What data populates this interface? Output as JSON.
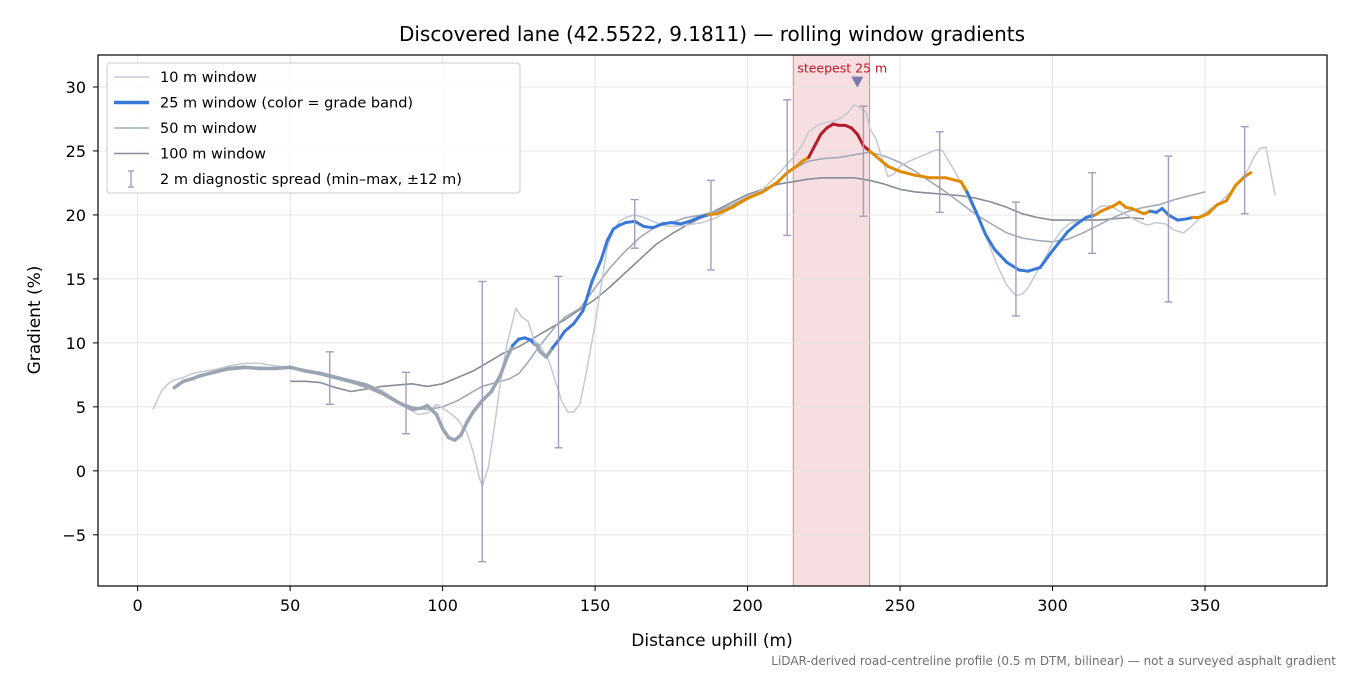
{
  "chart_data": {
    "type": "line",
    "title": "Discovered lane (42.5522, 9.1811) — rolling window gradients",
    "xlabel": "Distance uphill (m)",
    "ylabel": "Gradient (%)",
    "footnote": "LiDAR-derived road-centreline profile (0.5 m DTM, bilinear) — not a surveyed asphalt gradient",
    "xlim": [
      -13,
      390
    ],
    "ylim": [
      -9,
      32.5
    ],
    "xticks": [
      0,
      50,
      100,
      150,
      200,
      250,
      300,
      350
    ],
    "yticks": [
      -5,
      0,
      5,
      10,
      15,
      20,
      25,
      30
    ],
    "grid": true,
    "legend_position": "top-left",
    "annotation": {
      "text": "steepest 25 m",
      "x": 236,
      "y": 30.5,
      "color": "#c0182a"
    },
    "highlight_band": {
      "x0": 215,
      "x1": 240,
      "color": "#e8a0a8"
    },
    "grade_band_colors": {
      "low": "#9aa4b2",
      "mid": "#3a78d8",
      "high": "#e08a00",
      "steep": "#b81c2c"
    },
    "series": [
      {
        "name": "10 m window",
        "color": "#c4c9d2",
        "x": [
          5,
          8,
          10,
          12,
          15,
          18,
          20,
          25,
          30,
          35,
          40,
          45,
          50,
          55,
          60,
          65,
          70,
          75,
          80,
          85,
          88,
          92,
          95,
          98,
          100,
          103,
          105,
          108,
          110,
          112,
          113,
          115,
          117,
          119,
          121,
          124,
          126,
          128,
          130,
          132,
          135,
          137,
          139,
          141,
          143,
          145,
          147,
          150,
          152,
          154,
          156,
          158,
          160,
          163,
          166,
          169,
          172,
          175,
          180,
          185,
          190,
          195,
          200,
          205,
          210,
          215,
          218,
          220,
          223,
          225,
          228,
          230,
          233,
          235,
          237,
          239,
          240,
          242,
          244,
          246,
          248,
          250,
          253,
          256,
          259,
          262,
          264,
          266,
          268,
          270,
          273,
          276,
          279,
          282,
          285,
          288,
          290,
          292,
          295,
          298,
          300,
          303,
          306,
          310,
          313,
          316,
          319,
          322,
          325,
          328,
          331,
          334,
          337,
          340,
          343,
          346,
          349,
          352,
          355,
          358,
          361,
          364,
          366,
          368,
          370,
          373
        ],
        "y": [
          4.8,
          6.3,
          6.8,
          7.1,
          7.3,
          7.6,
          7.7,
          7.9,
          8.2,
          8.4,
          8.4,
          8.2,
          8.1,
          7.9,
          7.7,
          7.4,
          7.1,
          6.8,
          6.3,
          5.5,
          5.0,
          4.4,
          4.5,
          5.2,
          4.9,
          4.4,
          4.0,
          3.0,
          1.5,
          -0.5,
          -1.2,
          0.3,
          3.5,
          7.0,
          9.8,
          12.7,
          12.0,
          11.7,
          10.2,
          9.8,
          8.5,
          7.0,
          5.5,
          4.6,
          4.6,
          5.2,
          7.5,
          11.5,
          14.5,
          17.5,
          18.8,
          19.5,
          19.8,
          20.0,
          19.8,
          19.5,
          19.2,
          19.1,
          19.2,
          19.4,
          19.8,
          20.6,
          21.3,
          22.0,
          23.2,
          24.5,
          25.5,
          26.5,
          27.0,
          27.2,
          27.3,
          27.5,
          28.0,
          28.6,
          28.4,
          28.0,
          26.8,
          26.0,
          24.5,
          23.0,
          23.2,
          23.8,
          24.2,
          24.5,
          24.8,
          25.1,
          25.0,
          24.2,
          23.4,
          22.5,
          21.0,
          19.5,
          17.8,
          16.0,
          14.5,
          13.7,
          13.8,
          14.3,
          15.6,
          16.8,
          17.8,
          18.8,
          19.4,
          19.6,
          20.2,
          20.7,
          20.7,
          20.3,
          19.9,
          19.5,
          19.2,
          19.4,
          19.3,
          18.8,
          18.6,
          19.2,
          20.0,
          20.5,
          21.0,
          21.7,
          22.5,
          23.5,
          24.5,
          25.2,
          25.3,
          21.5
        ]
      },
      {
        "name": "25 m window (color = grade band)",
        "color": "#3a78d8",
        "x": [
          12,
          15,
          18,
          20,
          25,
          30,
          35,
          40,
          45,
          50,
          55,
          60,
          65,
          70,
          75,
          80,
          85,
          90,
          93,
          95,
          98,
          100,
          102,
          104,
          106,
          108,
          110,
          113,
          116,
          119,
          121,
          123,
          125,
          127,
          129,
          130,
          131,
          132,
          134,
          136,
          138,
          140,
          143,
          146,
          149,
          152,
          154,
          156,
          158,
          160,
          163,
          166,
          169,
          172,
          175,
          178,
          181,
          184,
          187,
          190,
          195,
          200,
          205,
          210,
          213,
          216,
          218,
          220,
          222,
          224,
          226,
          228,
          230,
          232,
          234,
          236,
          238,
          240,
          243,
          246,
          250,
          255,
          260,
          265,
          270,
          272,
          275,
          278,
          281,
          285,
          289,
          292,
          296,
          299,
          302,
          305,
          308,
          311,
          314,
          316,
          318,
          320,
          322,
          324,
          326,
          328,
          330,
          332,
          334,
          336,
          338,
          341,
          344,
          346,
          348,
          351,
          354,
          357,
          360,
          363,
          365,
          367
        ],
        "y": [
          6.5,
          7.0,
          7.2,
          7.4,
          7.7,
          8.0,
          8.1,
          8.0,
          8.0,
          8.1,
          7.8,
          7.6,
          7.3,
          7.0,
          6.7,
          6.1,
          5.4,
          4.8,
          4.9,
          5.1,
          4.4,
          3.3,
          2.6,
          2.4,
          2.8,
          3.8,
          4.6,
          5.5,
          6.2,
          7.5,
          8.8,
          9.8,
          10.3,
          10.4,
          10.2,
          9.9,
          9.8,
          9.3,
          8.9,
          9.6,
          10.2,
          10.9,
          11.5,
          12.5,
          14.8,
          16.5,
          18.0,
          18.9,
          19.2,
          19.4,
          19.5,
          19.1,
          19.0,
          19.3,
          19.4,
          19.3,
          19.5,
          19.8,
          20.0,
          20.1,
          20.6,
          21.3,
          21.8,
          22.6,
          23.3,
          23.8,
          24.2,
          24.5,
          25.4,
          26.3,
          26.8,
          27.1,
          27.0,
          27.0,
          26.8,
          26.3,
          25.4,
          25.0,
          24.4,
          23.8,
          23.4,
          23.1,
          22.9,
          22.9,
          22.6,
          21.8,
          20.2,
          18.5,
          17.3,
          16.3,
          15.7,
          15.6,
          15.9,
          16.9,
          17.8,
          18.7,
          19.3,
          19.8,
          20.0,
          20.3,
          20.5,
          20.7,
          21.0,
          20.6,
          20.5,
          20.3,
          20.1,
          20.3,
          20.2,
          20.5,
          20.0,
          19.6,
          19.7,
          19.8,
          19.8,
          20.1,
          20.8,
          21.1,
          22.3,
          23.0,
          23.3,
          22.8
        ],
        "bands": [
          "low",
          "low",
          "low",
          "low",
          "low",
          "low",
          "low",
          "low",
          "low",
          "low",
          "low",
          "low",
          "low",
          "low",
          "low",
          "low",
          "low",
          "low",
          "low",
          "low",
          "low",
          "low",
          "low",
          "low",
          "low",
          "low",
          "low",
          "low",
          "low",
          "low",
          "low",
          "mid",
          "mid",
          "mid",
          "mid",
          "low",
          "low",
          "low",
          "low",
          "mid",
          "mid",
          "mid",
          "mid",
          "mid",
          "mid",
          "mid",
          "mid",
          "mid",
          "mid",
          "mid",
          "mid",
          "mid",
          "mid",
          "mid",
          "mid",
          "mid",
          "mid",
          "mid",
          "high",
          "high",
          "high",
          "high",
          "high",
          "high",
          "high",
          "high",
          "high",
          "steep",
          "steep",
          "steep",
          "steep",
          "steep",
          "steep",
          "steep",
          "steep",
          "steep",
          "steep",
          "high",
          "high",
          "high",
          "high",
          "high",
          "high",
          "high",
          "high",
          "mid",
          "mid",
          "mid",
          "mid",
          "mid",
          "mid",
          "mid",
          "mid",
          "mid",
          "mid",
          "mid",
          "mid",
          "mid",
          "high",
          "high",
          "high",
          "high",
          "high",
          "high",
          "high",
          "high",
          "high",
          "mid",
          "mid",
          "mid",
          "mid",
          "mid",
          "mid",
          "high",
          "high",
          "high",
          "high",
          "high",
          "high",
          "high"
        ]
      },
      {
        "name": "50 m window",
        "color": "#a4aab6",
        "x": [
          25,
          30,
          35,
          40,
          45,
          50,
          55,
          60,
          65,
          70,
          75,
          80,
          85,
          90,
          95,
          100,
          105,
          110,
          113,
          116,
          119,
          122,
          125,
          128,
          131,
          134,
          137,
          140,
          145,
          150,
          155,
          160,
          165,
          170,
          175,
          180,
          185,
          190,
          195,
          200,
          205,
          210,
          215,
          220,
          225,
          230,
          235,
          240,
          245,
          250,
          255,
          260,
          265,
          270,
          275,
          280,
          285,
          290,
          295,
          300,
          305,
          310,
          315,
          320,
          325,
          330,
          335,
          340,
          345,
          350
        ],
        "y": [
          7.8,
          7.9,
          8.0,
          8.1,
          8.0,
          8.0,
          7.8,
          7.5,
          7.2,
          6.9,
          6.5,
          6.0,
          5.4,
          5.0,
          4.8,
          5.0,
          5.5,
          6.2,
          6.6,
          6.8,
          7.0,
          7.2,
          7.6,
          8.5,
          9.5,
          10.4,
          11.3,
          12.0,
          12.7,
          14.3,
          15.9,
          17.2,
          18.3,
          19.1,
          19.4,
          19.8,
          20.0,
          20.3,
          20.8,
          21.4,
          21.9,
          22.6,
          23.6,
          24.2,
          24.4,
          24.5,
          24.7,
          24.9,
          24.6,
          24.1,
          23.4,
          22.6,
          21.8,
          20.9,
          20.0,
          19.3,
          18.6,
          18.2,
          18.0,
          17.9,
          18.1,
          18.6,
          19.2,
          19.8,
          20.3,
          20.6,
          20.8,
          21.2,
          21.5,
          21.8
        ]
      },
      {
        "name": "100 m window",
        "color": "#868c98",
        "x": [
          50,
          55,
          60,
          65,
          70,
          75,
          80,
          85,
          90,
          95,
          100,
          105,
          110,
          115,
          120,
          125,
          130,
          135,
          140,
          145,
          150,
          155,
          160,
          165,
          170,
          175,
          180,
          185,
          190,
          195,
          200,
          205,
          210,
          215,
          220,
          225,
          230,
          235,
          240,
          245,
          250,
          255,
          260,
          265,
          270,
          275,
          280,
          285,
          290,
          295,
          300,
          305,
          310,
          315,
          320,
          325,
          330
        ],
        "y": [
          7.0,
          7.0,
          6.9,
          6.5,
          6.2,
          6.4,
          6.6,
          6.7,
          6.8,
          6.6,
          6.8,
          7.3,
          7.8,
          8.5,
          9.2,
          9.7,
          10.4,
          11.1,
          11.8,
          12.6,
          13.4,
          14.4,
          15.5,
          16.6,
          17.7,
          18.5,
          19.2,
          19.8,
          20.4,
          21.0,
          21.6,
          22.0,
          22.4,
          22.6,
          22.8,
          22.9,
          22.9,
          22.9,
          22.7,
          22.4,
          22.0,
          21.8,
          21.7,
          21.6,
          21.5,
          21.3,
          21.0,
          20.6,
          20.1,
          19.8,
          19.6,
          19.6,
          19.6,
          19.6,
          19.7,
          19.8,
          19.7
        ]
      },
      {
        "name": "2 m diagnostic spread (min–max, ±12 m)",
        "color": "#a39dbd",
        "type": "errorbar",
        "x": [
          63,
          88,
          113,
          138,
          163,
          188,
          213,
          238,
          263,
          288,
          313,
          338,
          363
        ],
        "y": [
          7.3,
          5.4,
          3.9,
          8.5,
          19.5,
          19.2,
          23.8,
          25.2,
          23.5,
          16.6,
          20.1,
          19.0,
          23.6
        ],
        "min": [
          5.2,
          2.9,
          -7.1,
          1.8,
          17.4,
          15.7,
          18.4,
          19.9,
          20.2,
          12.1,
          17.0,
          13.2,
          20.1
        ],
        "max": [
          9.3,
          7.7,
          14.8,
          15.2,
          21.2,
          22.7,
          29.0,
          28.5,
          26.5,
          21.0,
          23.3,
          24.6,
          26.9
        ]
      }
    ]
  }
}
